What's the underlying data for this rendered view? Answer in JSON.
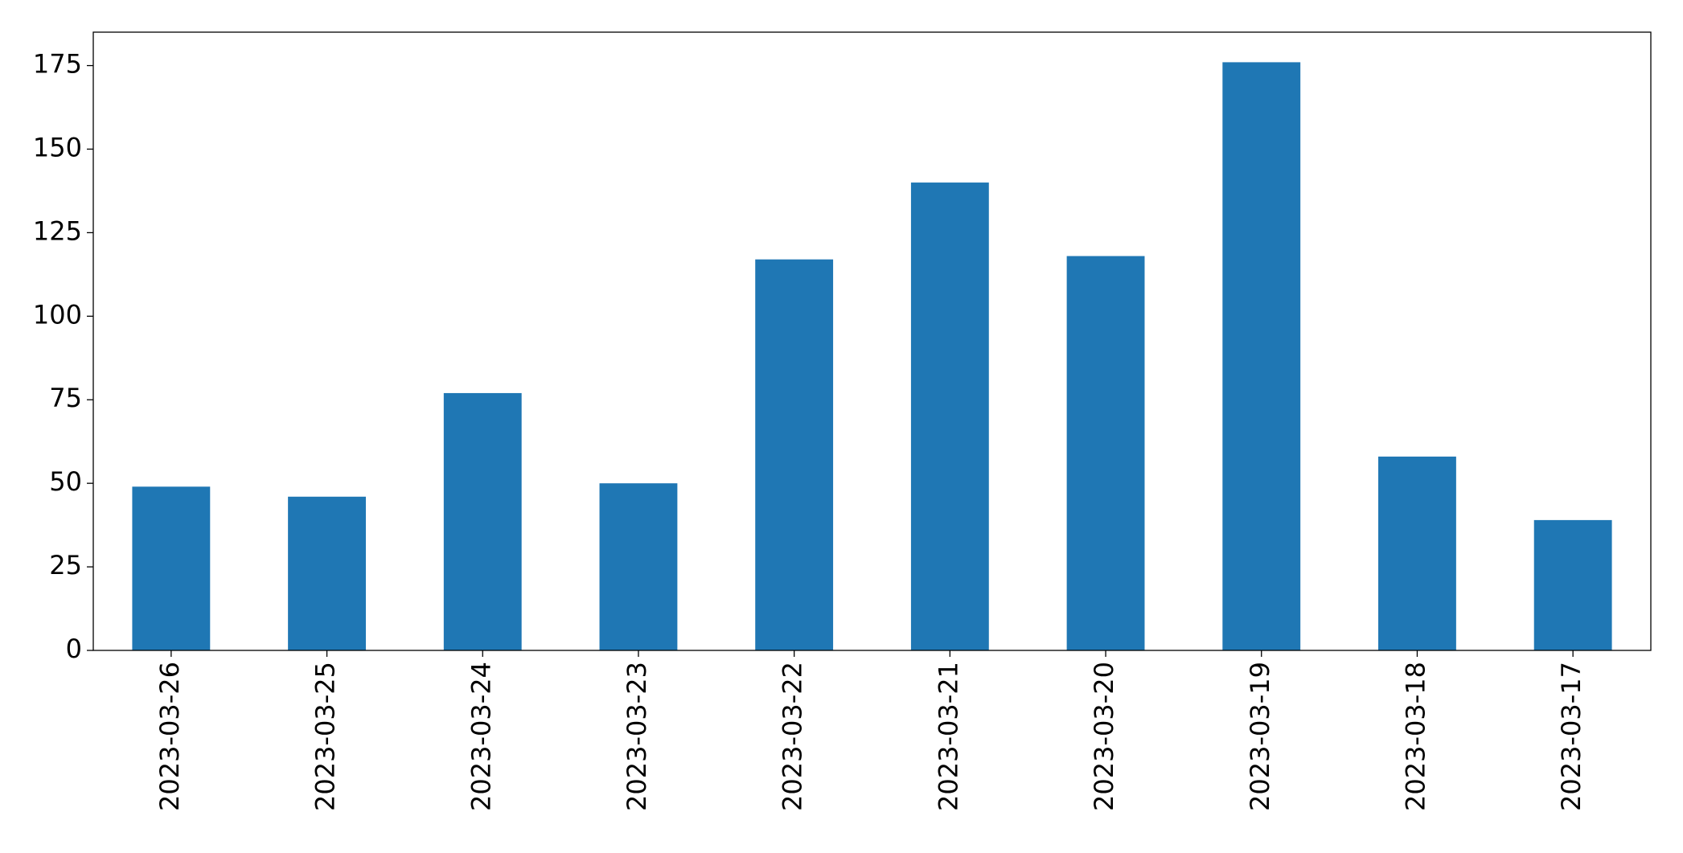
{
  "chart_data": {
    "type": "bar",
    "categories": [
      "2023-03-26",
      "2023-03-25",
      "2023-03-24",
      "2023-03-23",
      "2023-03-22",
      "2023-03-21",
      "2023-03-20",
      "2023-03-19",
      "2023-03-18",
      "2023-03-17"
    ],
    "values": [
      49,
      46,
      77,
      50,
      117,
      140,
      118,
      176,
      58,
      39
    ],
    "color": "#1f77b4",
    "ylim": [
      0,
      185
    ],
    "yticks": [
      0,
      25,
      50,
      75,
      100,
      125,
      150,
      175
    ],
    "grid": false
  }
}
